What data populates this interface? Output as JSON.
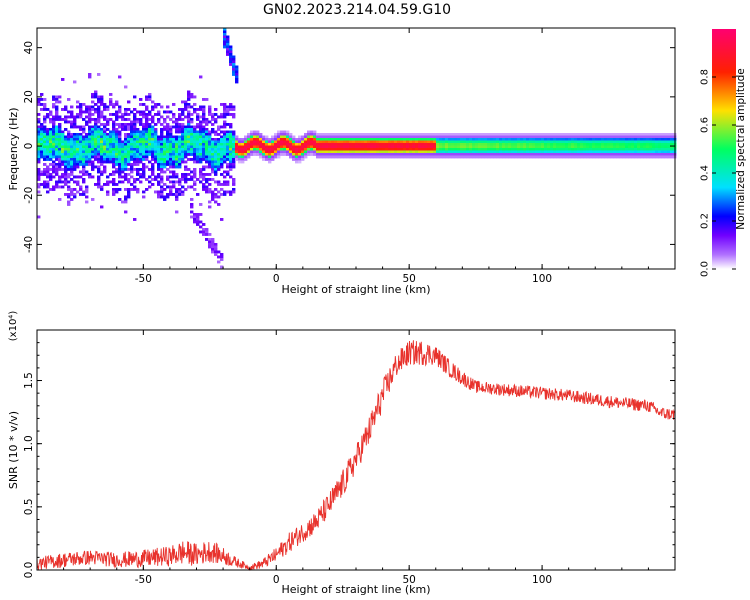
{
  "title": "GN02.2023.214.04.59.G10",
  "chart_data": [
    {
      "type": "heatmap",
      "xlabel": "Height of straight line (km)",
      "ylabel": "Frequency (Hz)",
      "xlim": [
        -90,
        150
      ],
      "ylim": [
        -50,
        48
      ],
      "xticks": [
        -50,
        0,
        50,
        100
      ],
      "yticks": [
        -40,
        -20,
        0,
        20,
        40
      ],
      "colorbar": {
        "label": "Normalized spectral amplitude",
        "range": [
          0,
          1
        ],
        "ticks": [
          "0.0",
          "0.2",
          "0.4",
          "0.6",
          "0.8"
        ],
        "tick_values": [
          0.0,
          0.2,
          0.4,
          0.6,
          0.8
        ]
      },
      "colormap": [
        "#d8b8f0",
        "#7000ff",
        "#0000ff",
        "#00e0ff",
        "#00ff60",
        "#ffe000",
        "#ff2000",
        "#ff0070"
      ],
      "features": {
        "central_band_freq_hz": 0,
        "noisy_band_x_range": [
          -90,
          -15
        ],
        "noisy_band_halfwidth_hz": [
          -8,
          6
        ],
        "steady_band_x_range": [
          -15,
          150
        ],
        "steady_band_halfwidth_hz": 3,
        "high_amplitude_segment_x_range": [
          -10,
          60
        ],
        "steady_band_peak_amplitude_at_x0": 0.95,
        "steady_band_peak_amplitude_at_x150": 0.5,
        "noisy_band_peak_amplitude": 0.45,
        "spur_upper": {
          "x_range": [
            -20,
            -14
          ],
          "freq_hz": [
            46,
            26
          ]
        },
        "spur_lower": {
          "x_range": [
            -33,
            -20
          ],
          "freq_hz": [
            -24,
            -48
          ]
        }
      }
    },
    {
      "type": "line",
      "xlabel": "Height of straight line (km)",
      "ylabel": "SNR (10 * v/v)",
      "yscale_label": "(x10⁴)",
      "xlim": [
        -90,
        150
      ],
      "ylim": [
        0,
        1.9
      ],
      "xticks": [
        -50,
        0,
        50,
        100
      ],
      "yticks": [
        "0.0",
        "0.5",
        "1.0",
        "1.5"
      ],
      "ytick_values": [
        0.0,
        0.5,
        1.0,
        1.5
      ],
      "color": "#e8322c",
      "x": [
        -90,
        -80,
        -70,
        -60,
        -50,
        -40,
        -35,
        -30,
        -25,
        -20,
        -15,
        -10,
        -5,
        0,
        5,
        10,
        15,
        20,
        25,
        30,
        35,
        40,
        45,
        50,
        55,
        60,
        65,
        70,
        75,
        80,
        90,
        100,
        110,
        120,
        130,
        140,
        145,
        150
      ],
      "y": [
        0.05,
        0.08,
        0.1,
        0.08,
        0.09,
        0.11,
        0.14,
        0.12,
        0.15,
        0.11,
        0.06,
        0.02,
        0.05,
        0.12,
        0.22,
        0.3,
        0.38,
        0.52,
        0.68,
        0.88,
        1.1,
        1.38,
        1.62,
        1.72,
        1.72,
        1.7,
        1.6,
        1.52,
        1.45,
        1.44,
        1.42,
        1.4,
        1.38,
        1.35,
        1.32,
        1.3,
        1.24,
        1.23
      ],
      "noise_amplitude": [
        0.05,
        0.06,
        0.06,
        0.06,
        0.07,
        0.08,
        0.1,
        0.09,
        0.09,
        0.07,
        0.04,
        0.02,
        0.04,
        0.06,
        0.08,
        0.08,
        0.09,
        0.1,
        0.11,
        0.11,
        0.12,
        0.12,
        0.1,
        0.1,
        0.1,
        0.08,
        0.07,
        0.06,
        0.05,
        0.05,
        0.05,
        0.05,
        0.05,
        0.05,
        0.05,
        0.05,
        0.05,
        0.05
      ]
    }
  ]
}
